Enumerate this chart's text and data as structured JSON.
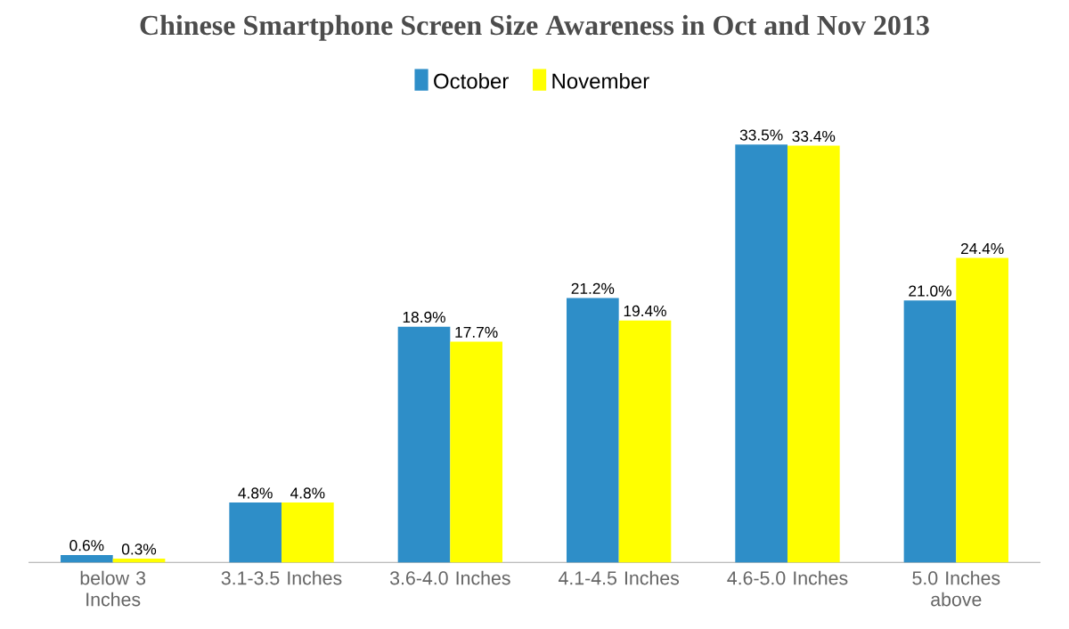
{
  "chart_data": {
    "type": "bar",
    "title": "Chinese Smartphone Screen Size Awareness in Oct and Nov 2013",
    "categories": [
      "below 3 Inches",
      "3.1-3.5 Inches",
      "3.6-4.0 Inches",
      "4.1-4.5 Inches",
      "4.6-5.0 Inches",
      "5.0 Inches above"
    ],
    "series": [
      {
        "name": "October",
        "color": "#2e8ec8",
        "values": [
          0.6,
          4.8,
          18.9,
          21.2,
          33.5,
          21.0
        ],
        "value_labels": [
          "0.6%",
          "4.8%",
          "18.9%",
          "21.2%",
          "33.5%",
          "21.0%"
        ]
      },
      {
        "name": "November",
        "color": "#ffff00",
        "values": [
          0.3,
          4.8,
          17.7,
          19.4,
          33.4,
          24.4
        ],
        "value_labels": [
          "0.3%",
          "4.8%",
          "17.7%",
          "19.4%",
          "33.4%",
          "24.4%"
        ]
      }
    ],
    "legend": "top"
  }
}
